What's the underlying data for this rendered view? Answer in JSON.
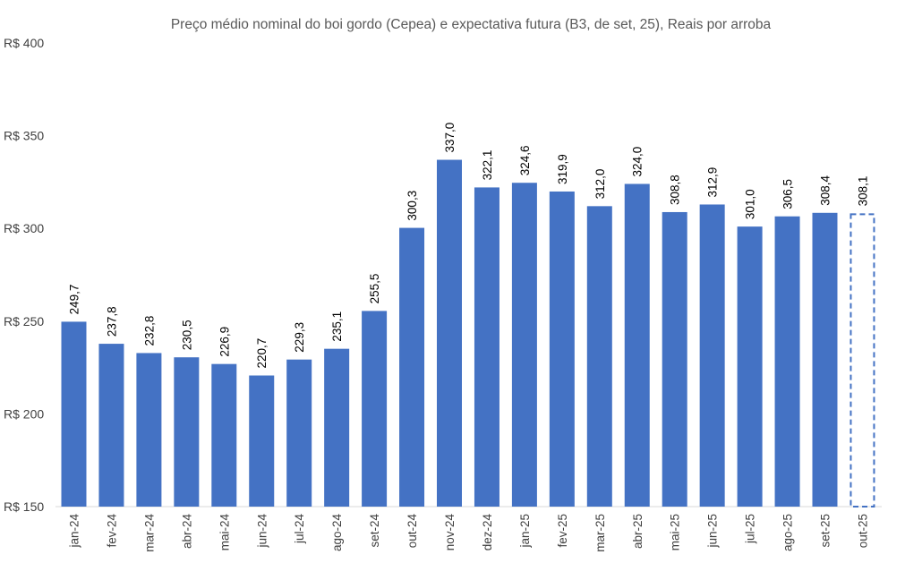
{
  "chart_data": {
    "type": "bar",
    "title": "Preço médio nominal do boi gordo (Cepea) e expectativa futura (B3, de set, 25), Reais por arroba",
    "xlabel": "",
    "ylabel": "",
    "ylim": [
      150,
      400
    ],
    "yticks": [
      150,
      200,
      250,
      300,
      350,
      400
    ],
    "ytick_prefix": "R$ ",
    "grid": false,
    "categories": [
      "jan-24",
      "fev-24",
      "mar-24",
      "abr-24",
      "mai-24",
      "jun-24",
      "jul-24",
      "ago-24",
      "set-24",
      "out-24",
      "nov-24",
      "dez-24",
      "jan-25",
      "fev-25",
      "mar-25",
      "abr-25",
      "mai-25",
      "jun-25",
      "jul-25",
      "ago-25",
      "set-25",
      "out-25"
    ],
    "values": [
      249.7,
      237.8,
      232.8,
      230.5,
      226.9,
      220.7,
      229.3,
      235.1,
      255.5,
      300.3,
      337.0,
      322.1,
      324.6,
      319.9,
      312.0,
      324.0,
      308.8,
      312.9,
      301.0,
      306.5,
      308.4,
      308.1
    ],
    "data_labels": [
      "249,7",
      "237,8",
      "232,8",
      "230,5",
      "226,9",
      "220,7",
      "229,3",
      "235,1",
      "255,5",
      "300,3",
      "337,0",
      "322,1",
      "324,6",
      "319,9",
      "312,0",
      "324,0",
      "308,8",
      "312,9",
      "301,0",
      "306,5",
      "308,4",
      "308,1"
    ],
    "projected": [
      false,
      false,
      false,
      false,
      false,
      false,
      false,
      false,
      false,
      false,
      false,
      false,
      false,
      false,
      false,
      false,
      false,
      false,
      false,
      false,
      false,
      true
    ],
    "colors": {
      "bar": "#4472C4",
      "projected_outline": "#4472C4",
      "axis": "#D9D9D9"
    }
  }
}
